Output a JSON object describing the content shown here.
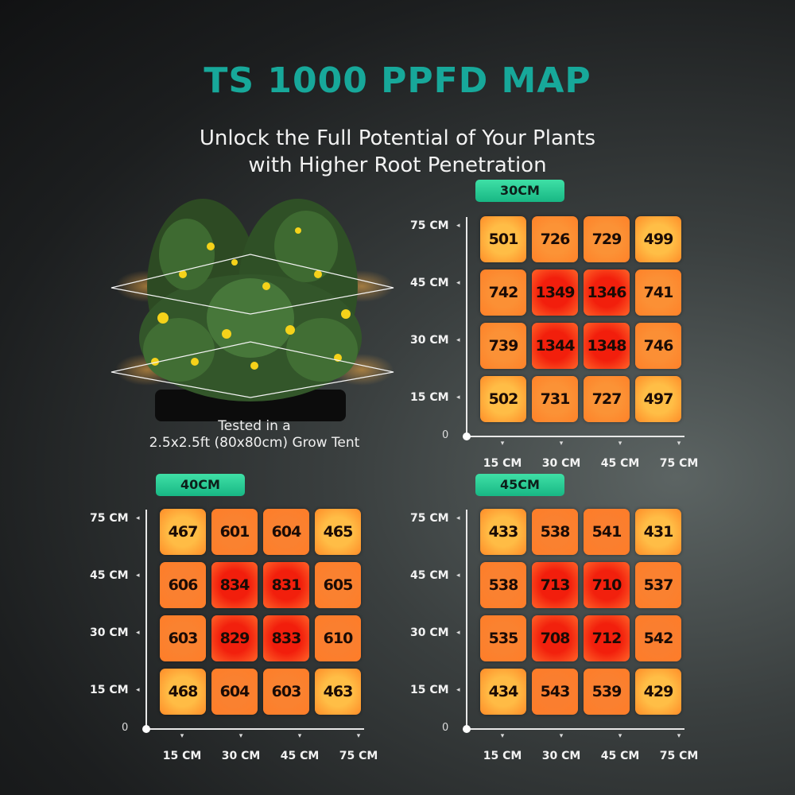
{
  "title": "TS 1000 PPFD MAP",
  "subtitle": [
    "Unlock the Full Potential of Your Plants",
    "with Higher Root Penetration"
  ],
  "caption": [
    "Tested in a",
    "2.5x2.5ft (80x80cm) Grow Tent"
  ],
  "colors": {
    "title": "#17a89a",
    "badge": "#2bd093",
    "cell_low": "#ffb23a",
    "cell_high": "#f21d0d"
  },
  "chart_data": [
    {
      "type": "heatmap",
      "title": "30CM",
      "x_tick_labels": [
        "15 CM",
        "30 CM",
        "45 CM",
        "75 CM"
      ],
      "y_tick_labels": [
        "75 CM",
        "45 CM",
        "30 CM",
        "15 CM"
      ],
      "origin_label": "0",
      "rows": [
        [
          501,
          726,
          729,
          499
        ],
        [
          742,
          1349,
          1346,
          741
        ],
        [
          739,
          1344,
          1348,
          746
        ],
        [
          502,
          731,
          727,
          497
        ]
      ]
    },
    {
      "type": "heatmap",
      "title": "40CM",
      "x_tick_labels": [
        "15 CM",
        "30 CM",
        "45 CM",
        "75 CM"
      ],
      "y_tick_labels": [
        "75 CM",
        "45 CM",
        "30 CM",
        "15 CM"
      ],
      "origin_label": "0",
      "rows": [
        [
          467,
          601,
          604,
          465
        ],
        [
          606,
          834,
          831,
          605
        ],
        [
          603,
          829,
          833,
          610
        ],
        [
          468,
          604,
          603,
          463
        ]
      ]
    },
    {
      "type": "heatmap",
      "title": "45CM",
      "x_tick_labels": [
        "15 CM",
        "30 CM",
        "45 CM",
        "75 CM"
      ],
      "y_tick_labels": [
        "75 CM",
        "45 CM",
        "30 CM",
        "15 CM"
      ],
      "origin_label": "0",
      "rows": [
        [
          433,
          538,
          541,
          431
        ],
        [
          538,
          713,
          710,
          537
        ],
        [
          535,
          708,
          712,
          542
        ],
        [
          434,
          543,
          539,
          429
        ]
      ]
    }
  ]
}
